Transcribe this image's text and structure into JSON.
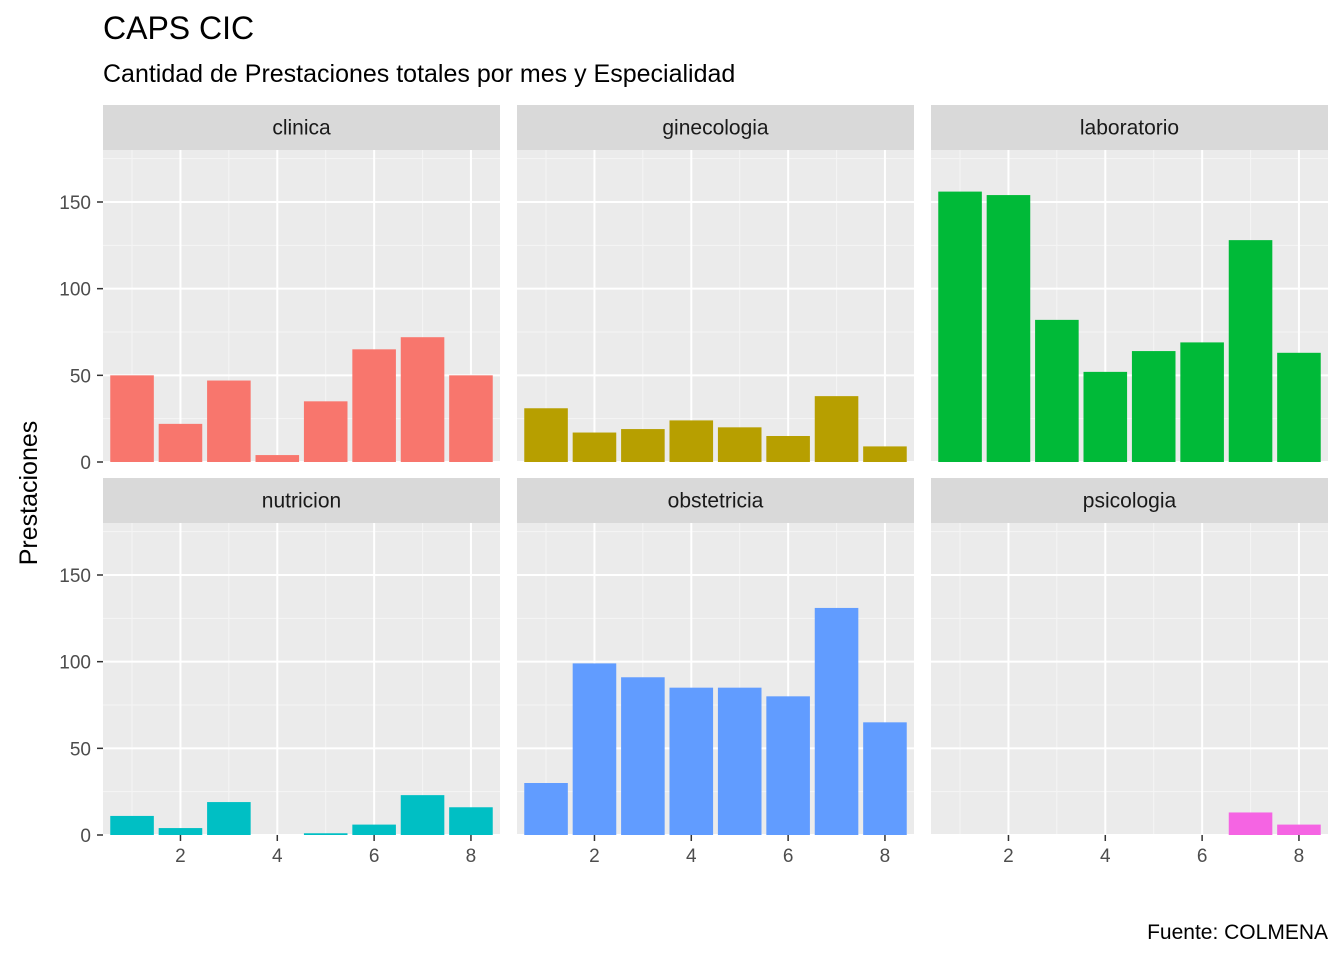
{
  "title": "CAPS CIC",
  "subtitle": "Cantidad de Prestaciones totales por mes y Especialidad",
  "caption": "Fuente: COLMENA",
  "chart_data": {
    "type": "bar",
    "ylabel": "Prestaciones",
    "xlabel": "",
    "ylim": [
      0,
      180
    ],
    "y_ticks": [
      0,
      50,
      100,
      150
    ],
    "x_ticks": [
      2,
      4,
      6,
      8
    ],
    "x_range": [
      0.4,
      8.6
    ],
    "grid": true,
    "legend": "none",
    "panels": [
      {
        "name": "clinica",
        "color": "#F8766D",
        "x": [
          1,
          2,
          3,
          4,
          5,
          6,
          7,
          8
        ],
        "values": [
          50,
          22,
          47,
          4,
          35,
          65,
          72,
          50
        ]
      },
      {
        "name": "ginecologia",
        "color": "#B79F00",
        "x": [
          1,
          2,
          3,
          4,
          5,
          6,
          7,
          8
        ],
        "values": [
          31,
          17,
          19,
          24,
          20,
          15,
          38,
          9
        ]
      },
      {
        "name": "laboratorio",
        "color": "#00BA38",
        "x": [
          1,
          2,
          3,
          4,
          5,
          6,
          7,
          8
        ],
        "values": [
          156,
          154,
          82,
          52,
          64,
          69,
          128,
          63
        ]
      },
      {
        "name": "nutricion",
        "color": "#00BFC4",
        "x": [
          1,
          2,
          3,
          5,
          6,
          7,
          8
        ],
        "values": [
          11,
          4,
          19,
          1,
          6,
          23,
          16
        ]
      },
      {
        "name": "obstetricia",
        "color": "#619CFF",
        "x": [
          1,
          2,
          3,
          4,
          5,
          6,
          7,
          8
        ],
        "values": [
          30,
          99,
          91,
          85,
          85,
          80,
          131,
          65
        ]
      },
      {
        "name": "psicologia",
        "color": "#F564E3",
        "x": [
          7,
          8
        ],
        "values": [
          13,
          6
        ]
      }
    ]
  }
}
